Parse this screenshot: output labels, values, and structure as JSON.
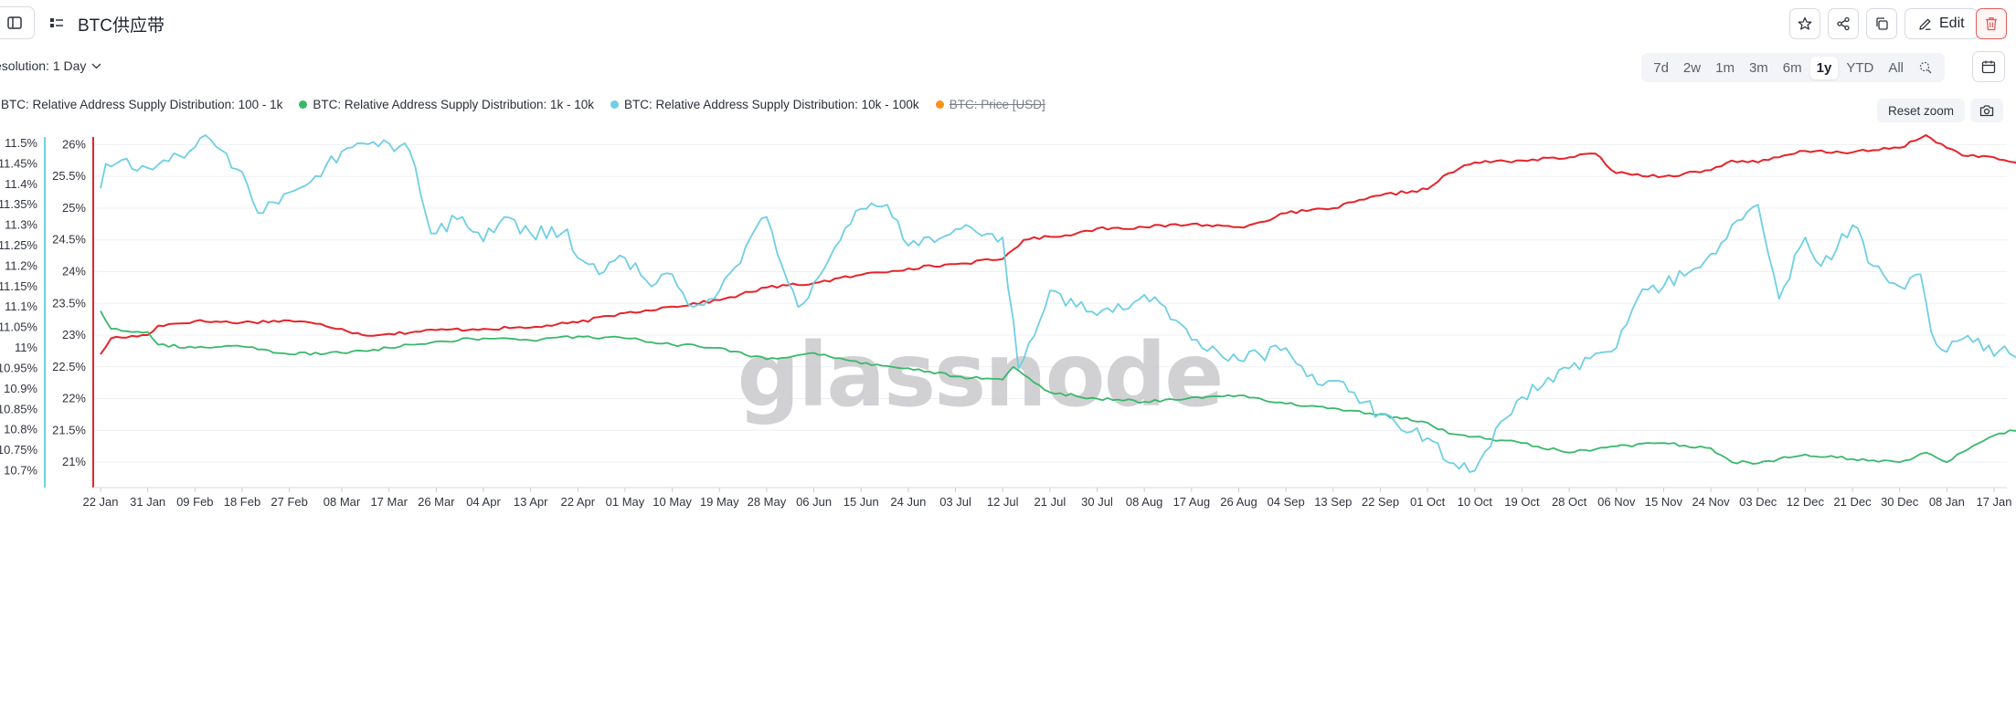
{
  "header": {
    "title": "BTC供应带",
    "edit_label": "Edit",
    "resolution_label": "esolution: 1 Day"
  },
  "icons": {
    "sidebar": "sidebar-toggle-icon",
    "grid": "dashboard-grid-icon",
    "star": "star-icon",
    "share": "share-icon",
    "duplicate": "duplicate-icon",
    "edit": "pencil-icon",
    "delete": "trash-icon",
    "zoom": "zoom-select-icon",
    "calendar": "calendar-icon",
    "camera": "camera-icon"
  },
  "range_selector": {
    "options": [
      "7d",
      "2w",
      "1m",
      "3m",
      "6m",
      "1y",
      "YTD",
      "All"
    ],
    "selected": "1y"
  },
  "reset_zoom_label": "Reset zoom",
  "watermark": "glassnode",
  "colors": {
    "s100_1k": "#e5242b",
    "s1k_10k": "#39b86a",
    "s10k_100k": "#6fcfe3",
    "price": "#f7931a",
    "delete": "#e45a5a"
  },
  "chart_data": {
    "type": "line",
    "title": "BTC供应带",
    "legend_position": "top-left",
    "grid": true,
    "x": {
      "ticks": [
        "22 Jan",
        "31 Jan",
        "09 Feb",
        "18 Feb",
        "27 Feb",
        "08 Mar",
        "17 Mar",
        "26 Mar",
        "04 Apr",
        "13 Apr",
        "22 Apr",
        "01 May",
        "10 May",
        "19 May",
        "28 May",
        "06 Jun",
        "15 Jun",
        "24 Jun",
        "03 Jul",
        "12 Jul",
        "21 Jul",
        "30 Jul",
        "08 Aug",
        "17 Aug",
        "26 Aug",
        "04 Sep",
        "13 Sep",
        "22 Sep",
        "01 Oct",
        "10 Oct",
        "19 Oct",
        "28 Oct",
        "06 Nov",
        "15 Nov",
        "24 Nov",
        "03 Dec",
        "12 Dec",
        "21 Dec",
        "30 Dec",
        "08 Jan",
        "17 Jan"
      ]
    },
    "y_left_outer": {
      "series": "BTC: Relative Address Supply Distribution: 10k - 100k",
      "ticks": [
        "11.5%",
        "11.45%",
        "11.4%",
        "11.35%",
        "11.3%",
        "11.25%",
        "11.2%",
        "11.15%",
        "11.1%",
        "11.05%",
        "11%",
        "10.95%",
        "10.9%",
        "10.85%",
        "10.8%",
        "10.75%",
        "10.7%"
      ],
      "ylim": [
        10.69,
        11.52
      ]
    },
    "y_left_inner": {
      "series": "BTC: Relative Address Supply Distribution: 100 - 1k / 1k - 10k",
      "ticks": [
        "26%",
        "25.5%",
        "25%",
        "24.5%",
        "24%",
        "23.5%",
        "23%",
        "22.5%",
        "22%",
        "21.5%",
        "21%"
      ],
      "ylim": [
        20.8,
        26.15
      ]
    },
    "series": [
      {
        "name": "BTC: Relative Address Supply Distribution: 100 - 1k",
        "axis": "inner",
        "color": "#e5242b",
        "visible": true,
        "points": [
          [
            "22 Jan",
            22.7
          ],
          [
            "24 Jan",
            22.95
          ],
          [
            "31 Jan",
            23.0
          ],
          [
            "02 Feb",
            23.15
          ],
          [
            "09 Feb",
            23.22
          ],
          [
            "18 Feb",
            23.2
          ],
          [
            "27 Feb",
            23.23
          ],
          [
            "03 Mar",
            23.18
          ],
          [
            "08 Mar",
            23.1
          ],
          [
            "12 Mar",
            23.0
          ],
          [
            "17 Mar",
            23.02
          ],
          [
            "26 Mar",
            23.08
          ],
          [
            "04 Apr",
            23.1
          ],
          [
            "13 Apr",
            23.12
          ],
          [
            "22 Apr",
            23.2
          ],
          [
            "01 May",
            23.35
          ],
          [
            "10 May",
            23.45
          ],
          [
            "19 May",
            23.55
          ],
          [
            "28 May",
            23.75
          ],
          [
            "06 Jun",
            23.82
          ],
          [
            "15 Jun",
            23.95
          ],
          [
            "24 Jun",
            24.05
          ],
          [
            "03 Jul",
            24.12
          ],
          [
            "12 Jul",
            24.2
          ],
          [
            "16 Jul",
            24.5
          ],
          [
            "21 Jul",
            24.55
          ],
          [
            "26 Jul",
            24.6
          ],
          [
            "30 Jul",
            24.68
          ],
          [
            "08 Aug",
            24.7
          ],
          [
            "17 Aug",
            24.75
          ],
          [
            "26 Aug",
            24.7
          ],
          [
            "30 Aug",
            24.78
          ],
          [
            "04 Sep",
            24.92
          ],
          [
            "13 Sep",
            25.0
          ],
          [
            "22 Sep",
            25.2
          ],
          [
            "01 Oct",
            25.3
          ],
          [
            "05 Oct",
            25.55
          ],
          [
            "10 Oct",
            25.72
          ],
          [
            "19 Oct",
            25.75
          ],
          [
            "28 Oct",
            25.8
          ],
          [
            "02 Nov",
            25.86
          ],
          [
            "06 Nov",
            25.55
          ],
          [
            "15 Nov",
            25.5
          ],
          [
            "24 Nov",
            25.6
          ],
          [
            "28 Nov",
            25.75
          ],
          [
            "03 Dec",
            25.72
          ],
          [
            "12 Dec",
            25.9
          ],
          [
            "21 Dec",
            25.88
          ],
          [
            "30 Dec",
            25.95
          ],
          [
            "04 Jan",
            26.15
          ],
          [
            "08 Jan",
            25.95
          ],
          [
            "12 Jan",
            25.82
          ],
          [
            "17 Jan",
            25.8
          ],
          [
            "23 Jan",
            25.65
          ]
        ]
      },
      {
        "name": "BTC: Relative Address Supply Distribution: 1k - 10k",
        "axis": "inner",
        "color": "#39b86a",
        "visible": true,
        "points": [
          [
            "22 Jan",
            23.38
          ],
          [
            "24 Jan",
            23.1
          ],
          [
            "31 Jan",
            23.05
          ],
          [
            "02 Feb",
            22.85
          ],
          [
            "09 Feb",
            22.8
          ],
          [
            "18 Feb",
            22.82
          ],
          [
            "27 Feb",
            22.7
          ],
          [
            "08 Mar",
            22.72
          ],
          [
            "17 Mar",
            22.8
          ],
          [
            "26 Mar",
            22.9
          ],
          [
            "04 Apr",
            22.95
          ],
          [
            "13 Apr",
            22.92
          ],
          [
            "22 Apr",
            22.98
          ],
          [
            "01 May",
            22.95
          ],
          [
            "10 May",
            22.85
          ],
          [
            "19 May",
            22.8
          ],
          [
            "28 May",
            22.62
          ],
          [
            "06 Jun",
            22.72
          ],
          [
            "15 Jun",
            22.55
          ],
          [
            "24 Jun",
            22.48
          ],
          [
            "03 Jul",
            22.35
          ],
          [
            "12 Jul",
            22.3
          ],
          [
            "14 Jul",
            22.5
          ],
          [
            "21 Jul",
            22.1
          ],
          [
            "30 Jul",
            22.0
          ],
          [
            "08 Aug",
            21.95
          ],
          [
            "17 Aug",
            22.02
          ],
          [
            "26 Aug",
            22.05
          ],
          [
            "04 Sep",
            21.92
          ],
          [
            "13 Sep",
            21.85
          ],
          [
            "22 Sep",
            21.75
          ],
          [
            "01 Oct",
            21.62
          ],
          [
            "05 Oct",
            21.45
          ],
          [
            "10 Oct",
            21.4
          ],
          [
            "19 Oct",
            21.3
          ],
          [
            "28 Oct",
            21.15
          ],
          [
            "06 Nov",
            21.25
          ],
          [
            "15 Nov",
            21.3
          ],
          [
            "24 Nov",
            21.22
          ],
          [
            "28 Nov",
            21.0
          ],
          [
            "03 Dec",
            20.98
          ],
          [
            "12 Dec",
            21.12
          ],
          [
            "21 Dec",
            21.05
          ],
          [
            "30 Dec",
            21.0
          ],
          [
            "04 Jan",
            21.15
          ],
          [
            "08 Jan",
            21.0
          ],
          [
            "12 Jan",
            21.2
          ],
          [
            "17 Jan",
            21.42
          ],
          [
            "23 Jan",
            21.55
          ]
        ]
      },
      {
        "name": "BTC: Relative Address Supply Distribution: 10k - 100k",
        "axis": "outer",
        "color": "#6fcfe3",
        "visible": true,
        "points": [
          [
            "22 Jan",
            11.39
          ],
          [
            "23 Jan",
            11.45
          ],
          [
            "31 Jan",
            11.44
          ],
          [
            "06 Feb",
            11.47
          ],
          [
            "09 Feb",
            11.49
          ],
          [
            "11 Feb",
            11.52
          ],
          [
            "18 Feb",
            11.43
          ],
          [
            "21 Feb",
            11.33
          ],
          [
            "27 Feb",
            11.38
          ],
          [
            "03 Mar",
            11.42
          ],
          [
            "08 Mar",
            11.48
          ],
          [
            "12 Mar",
            11.5
          ],
          [
            "17 Mar",
            11.5
          ],
          [
            "21 Mar",
            11.48
          ],
          [
            "25 Mar",
            11.28
          ],
          [
            "31 Mar",
            11.32
          ],
          [
            "04 Apr",
            11.26
          ],
          [
            "08 Apr",
            11.32
          ],
          [
            "13 Apr",
            11.28
          ],
          [
            "20 Apr",
            11.29
          ],
          [
            "22 Apr",
            11.22
          ],
          [
            "26 Apr",
            11.18
          ],
          [
            "01 May",
            11.22
          ],
          [
            "06 May",
            11.15
          ],
          [
            "10 May",
            11.18
          ],
          [
            "14 May",
            11.1
          ],
          [
            "19 May",
            11.14
          ],
          [
            "28 May",
            11.32
          ],
          [
            "03 Jun",
            11.1
          ],
          [
            "06 Jun",
            11.16
          ],
          [
            "15 Jun",
            11.34
          ],
          [
            "20 Jun",
            11.35
          ],
          [
            "24 Jun",
            11.25
          ],
          [
            "03 Jul",
            11.29
          ],
          [
            "12 Jul",
            11.27
          ],
          [
            "15 Jul",
            10.95
          ],
          [
            "21 Jul",
            11.14
          ],
          [
            "30 Jul",
            11.08
          ],
          [
            "08 Aug",
            11.13
          ],
          [
            "12 Aug",
            11.1
          ],
          [
            "17 Aug",
            11.02
          ],
          [
            "26 Aug",
            10.97
          ],
          [
            "04 Sep",
            11.0
          ],
          [
            "08 Sep",
            10.93
          ],
          [
            "13 Sep",
            10.92
          ],
          [
            "22 Sep",
            10.84
          ],
          [
            "01 Oct",
            10.78
          ],
          [
            "05 Oct",
            10.72
          ],
          [
            "10 Oct",
            10.7
          ],
          [
            "15 Oct",
            10.82
          ],
          [
            "19 Oct",
            10.88
          ],
          [
            "28 Oct",
            10.95
          ],
          [
            "06 Nov",
            11.0
          ],
          [
            "10 Nov",
            11.12
          ],
          [
            "15 Nov",
            11.15
          ],
          [
            "24 Nov",
            11.23
          ],
          [
            "03 Dec",
            11.35
          ],
          [
            "07 Dec",
            11.12
          ],
          [
            "12 Dec",
            11.27
          ],
          [
            "15 Dec",
            11.2
          ],
          [
            "21 Dec",
            11.3
          ],
          [
            "25 Dec",
            11.2
          ],
          [
            "30 Dec",
            11.15
          ],
          [
            "03 Jan",
            11.18
          ],
          [
            "05 Jan",
            11.04
          ],
          [
            "08 Jan",
            10.99
          ],
          [
            "12 Jan",
            11.03
          ],
          [
            "17 Jan",
            10.98
          ],
          [
            "23 Jan",
            11.0
          ]
        ]
      },
      {
        "name": "BTC: Price [USD]",
        "axis": "none",
        "color": "#f7931a",
        "visible": false,
        "points": []
      }
    ]
  }
}
